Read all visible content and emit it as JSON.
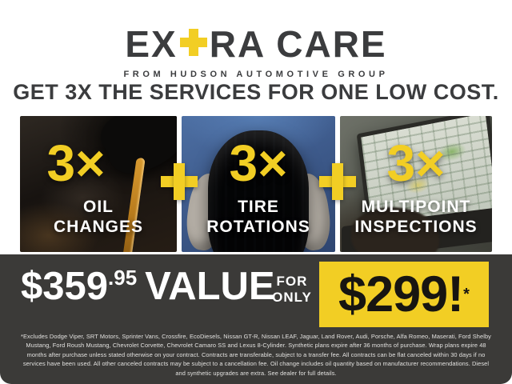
{
  "brand": {
    "logo_prefix": "EX",
    "logo_plus": "+",
    "logo_suffix": "RA CARE",
    "tagline": "FROM HUDSON AUTOMOTIVE GROUP"
  },
  "headline": "GET 3X THE SERVICES FOR ONE LOW COST.",
  "services": [
    {
      "multiplier": "3×",
      "label_line1": "OIL",
      "label_line2": "CHANGES",
      "photo": "oil-pouring-photo"
    },
    {
      "multiplier": "3×",
      "label_line1": "TIRE",
      "label_line2": "ROTATIONS",
      "photo": "tire-photo"
    },
    {
      "multiplier": "3×",
      "label_line1": "MULTIPOINT",
      "label_line2": "INSPECTIONS",
      "photo": "laptop-inspection-photo"
    }
  ],
  "offer": {
    "value_dollars": "$359",
    "value_cents": ".95",
    "value_word": "VALUE",
    "for_label": "FOR",
    "only_label": "ONLY",
    "price": "$299!",
    "asterisk": "*"
  },
  "disclaimer": "*Excludes Dodge Viper, SRT Motors, Sprinter Vans, Crossfire, EcoDiesels, Nissan GT-R, Nissan LEAF, Jaguar, Land Rover, Audi, Porsche, Alfa Romeo, Maserati, Ford Shelby Mustang, Ford Roush Mustang, Chevrolet Corvette, Chevrolet Camaro SS and Lexus 8-Cylinder. Synthetic plans expire after 36 months of purchase. Wrap plans expire 48 months after purchase unless stated otherwise on your contract. Contracts are transferable, subject to a transfer fee. All contracts can be flat canceled within 30 days if no services have been used. All other canceled contracts may be subject to a cancellation fee. Oil change includes oil quantity based on manufacturer recommendations. Diesel and synthetic upgrades are extra. See dealer for full details.",
  "colors": {
    "accent_yellow": "#f2ce24",
    "band_charcoal": "#3b3a38",
    "text_dark": "#3b3c3e",
    "text_white": "#ffffff"
  }
}
